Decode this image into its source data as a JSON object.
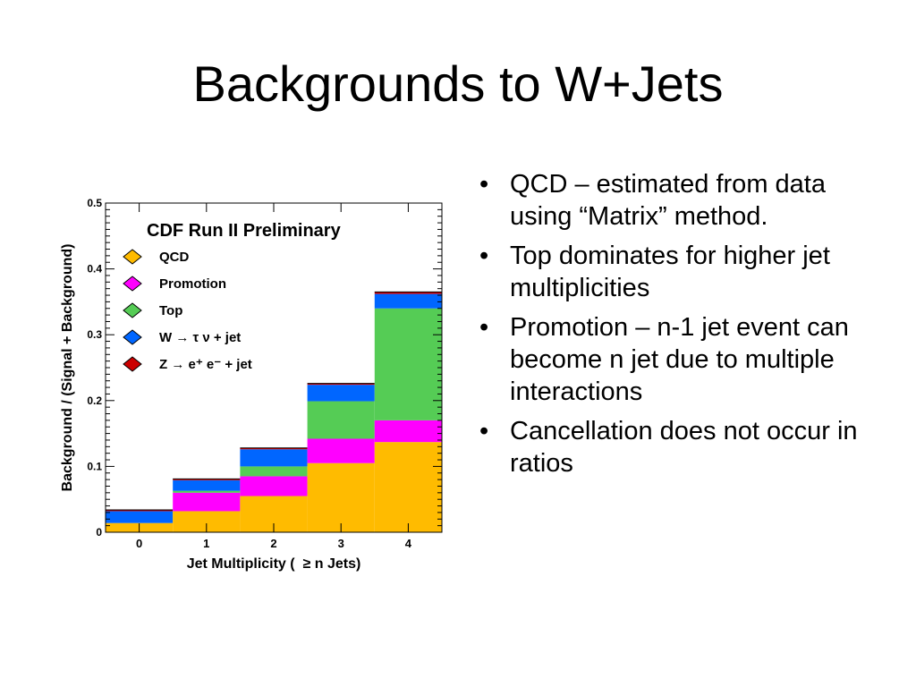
{
  "slide": {
    "title": "Backgrounds to W+Jets"
  },
  "bullets": [
    "QCD – estimated from data using “Matrix” method.",
    "Top dominates for higher jet multiplicities",
    "Promotion – n-1 jet event can become n jet due to multiple interactions",
    "Cancellation does not occur in ratios"
  ],
  "chart_data": {
    "type": "bar",
    "stacked": true,
    "title": "CDF Run II Preliminary",
    "xlabel": "Jet Multiplicity (  ≥ n Jets)",
    "ylabel": "Background / (Signal + Background)",
    "categories": [
      "0",
      "1",
      "2",
      "3",
      "4"
    ],
    "ylim": [
      0,
      0.5
    ],
    "yticks": [
      "0",
      "0.1",
      "0.2",
      "0.3",
      "0.4",
      "0.5"
    ],
    "legend_position": "top-left",
    "series": [
      {
        "name": "QCD",
        "color": "#ffbb00",
        "values": [
          0.014,
          0.032,
          0.055,
          0.105,
          0.137
        ]
      },
      {
        "name": "Promotion",
        "color": "#ff00ff",
        "values": [
          0.0,
          0.028,
          0.03,
          0.037,
          0.033
        ]
      },
      {
        "name": "Top",
        "color": "#55cc55",
        "values": [
          0.0,
          0.003,
          0.015,
          0.057,
          0.17
        ]
      },
      {
        "name": "W → τ ν + jet",
        "color": "#0066ff",
        "values": [
          0.018,
          0.016,
          0.026,
          0.025,
          0.022
        ]
      },
      {
        "name": "Z → e⁺ e⁻ + jet",
        "color": "#cc0000",
        "values": [
          0.002,
          0.002,
          0.002,
          0.002,
          0.003
        ]
      }
    ]
  }
}
